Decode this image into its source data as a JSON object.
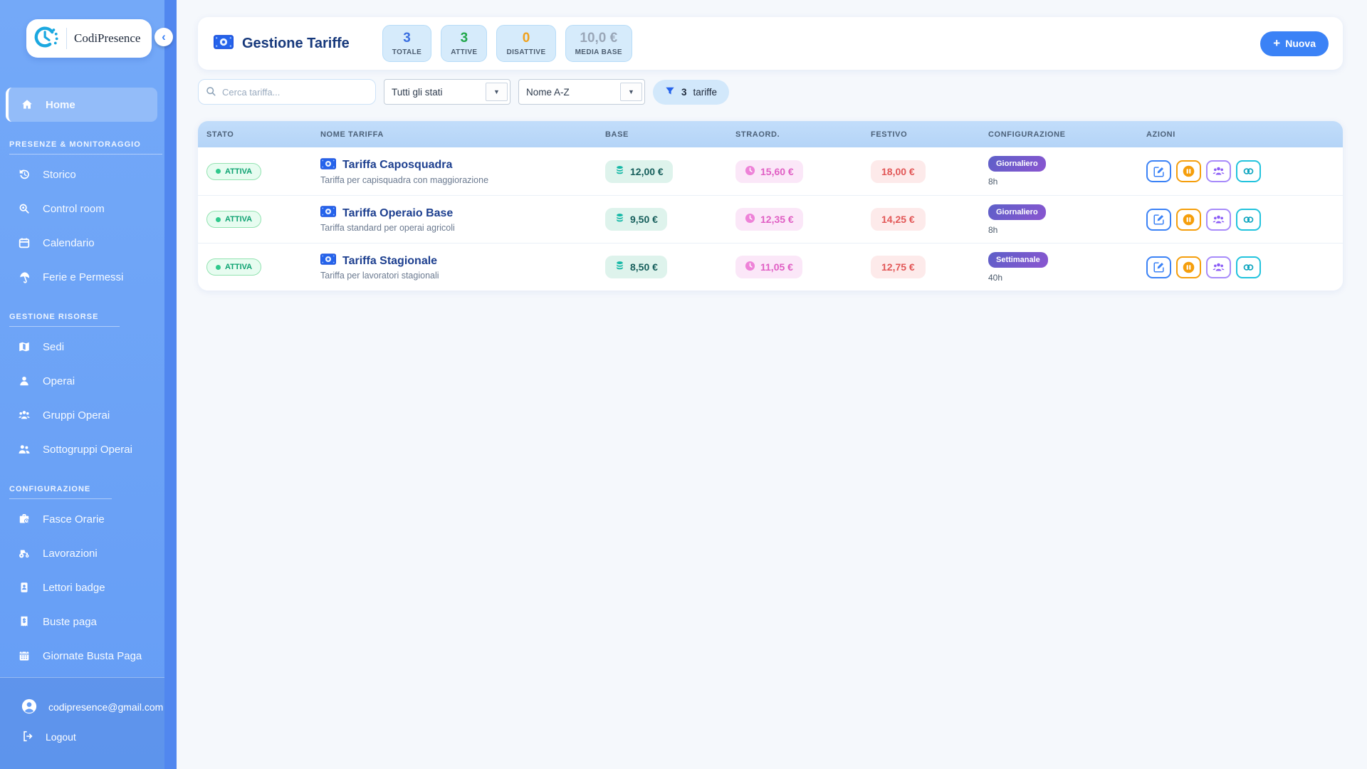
{
  "app": {
    "brand": "CodiPresence"
  },
  "sidebar": {
    "home": {
      "label": "Home",
      "icon": "home-icon"
    },
    "sections": [
      {
        "title": "PRESENZE & MONITORAGGIO",
        "items": [
          {
            "label": "Storico",
            "icon": "history-icon"
          },
          {
            "label": "Control room",
            "icon": "search-icon"
          },
          {
            "label": "Calendario",
            "icon": "calendar-icon"
          },
          {
            "label": "Ferie e Permessi",
            "icon": "umbrella-icon"
          }
        ]
      },
      {
        "title": "GESTIONE RISORSE",
        "items": [
          {
            "label": "Sedi",
            "icon": "map-icon"
          },
          {
            "label": "Operai",
            "icon": "person-icon"
          },
          {
            "label": "Gruppi Operai",
            "icon": "group-icon"
          },
          {
            "label": "Sottogruppi Operai",
            "icon": "subgroup-icon"
          }
        ]
      },
      {
        "title": "CONFIGURAZIONE",
        "items": [
          {
            "label": "Fasce Orarie",
            "icon": "briefcase-clock-icon"
          },
          {
            "label": "Lavorazioni",
            "icon": "tractor-icon"
          },
          {
            "label": "Lettori badge",
            "icon": "badge-reader-icon"
          },
          {
            "label": "Buste paga",
            "icon": "payslip-icon"
          },
          {
            "label": "Giornate Busta Paga",
            "icon": "calendar-days-icon"
          }
        ]
      }
    ],
    "footer": {
      "email": "codipresence@gmail.com",
      "logout": "Logout"
    }
  },
  "header": {
    "title": "Gestione Tariffe",
    "stats": [
      {
        "value": "3",
        "label": "TOTALE",
        "color": "#3b6fe0"
      },
      {
        "value": "3",
        "label": "ATTIVE",
        "color": "#21a74a"
      },
      {
        "value": "0",
        "label": "DISATTIVE",
        "color": "#f0a11c"
      },
      {
        "value": "10,0 €",
        "label": "MEDIA BASE",
        "color": "#9aa7b8"
      }
    ],
    "new_button": "Nuova"
  },
  "filters": {
    "search_placeholder": "Cerca tariffa...",
    "status_select": "Tutti gli stati",
    "sort_select": "Nome A-Z",
    "count": "3",
    "count_label": "tariffe"
  },
  "table": {
    "columns": [
      "STATO",
      "NOME TARIFFA",
      "BASE",
      "STRAORD.",
      "FESTIVO",
      "CONFIGURAZIONE",
      "AZIONI"
    ],
    "rows": [
      {
        "status": "ATTIVA",
        "name": "Tariffa Caposquadra",
        "desc": "Tariffa per capisquadra con maggiorazione",
        "base": "12,00 €",
        "straord": "15,60 €",
        "festivo": "18,00 €",
        "config": "Giornaliero",
        "hours": "8h"
      },
      {
        "status": "ATTIVA",
        "name": "Tariffa Operaio Base",
        "desc": "Tariffa standard per operai agricoli",
        "base": "9,50 €",
        "straord": "12,35 €",
        "festivo": "14,25 €",
        "config": "Giornaliero",
        "hours": "8h"
      },
      {
        "status": "ATTIVA",
        "name": "Tariffa Stagionale",
        "desc": "Tariffa per lavoratori stagionali",
        "base": "8,50 €",
        "straord": "11,05 €",
        "festivo": "12,75 €",
        "config": "Settimanale",
        "hours": "40h"
      }
    ]
  },
  "colors": {
    "accent": "#3b82f6",
    "sidebar": "#659df5",
    "active_green": "#0da271",
    "warn_orange": "#f59e0b",
    "purple": "#8b5cf6",
    "teal": "#0ea5bf"
  }
}
